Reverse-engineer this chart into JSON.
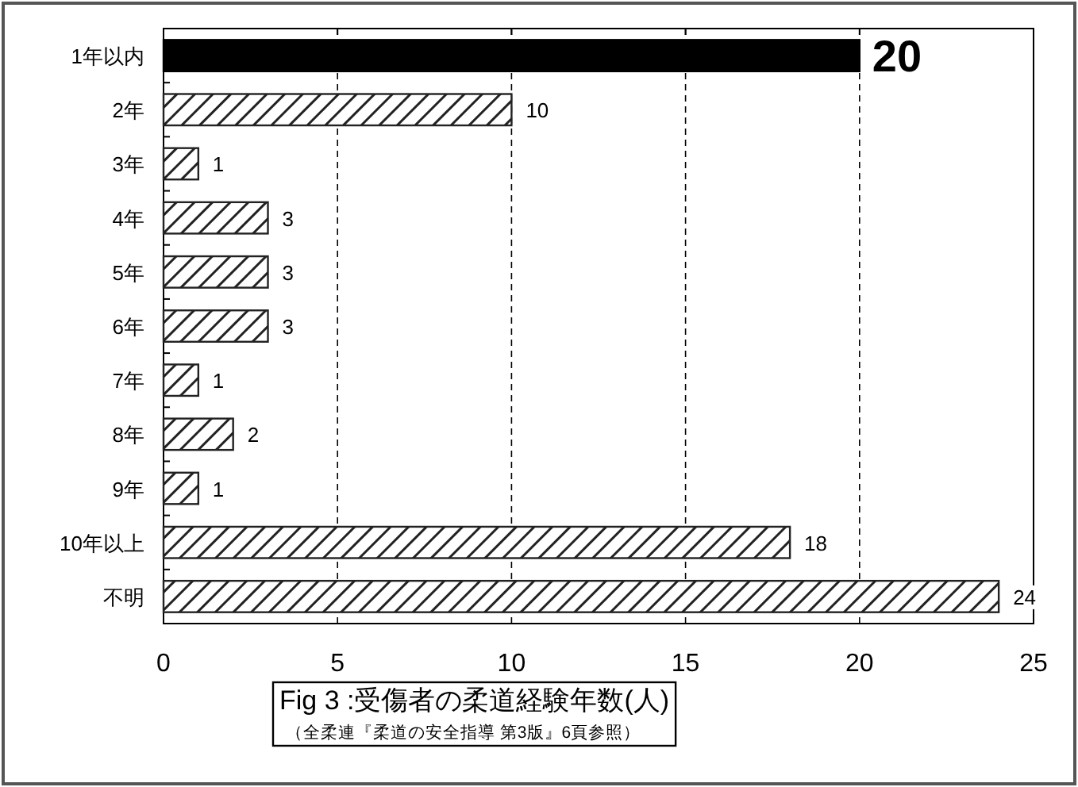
{
  "chart_data": {
    "type": "bar",
    "orientation": "horizontal",
    "title": "Fig 3 :受傷者の柔道経験年数(人)",
    "subtitle": "（全柔連『柔道の安全指導 第3版』6頁参照）",
    "categories": [
      "1年以内",
      "2年",
      "3年",
      "4年",
      "5年",
      "6年",
      "7年",
      "8年",
      "9年",
      "10年以上",
      "不明"
    ],
    "values": [
      20,
      10,
      1,
      3,
      3,
      3,
      1,
      2,
      1,
      18,
      24
    ],
    "colors": [
      "#000000",
      "#222222",
      "#222222",
      "#222222",
      "#222222",
      "#222222",
      "#222222",
      "#222222",
      "#222222",
      "#222222",
      "#222222"
    ],
    "xlim": [
      0,
      25
    ],
    "xticks": [
      0,
      5,
      10,
      15,
      20,
      25
    ],
    "grid": "x",
    "data_labels": true
  }
}
